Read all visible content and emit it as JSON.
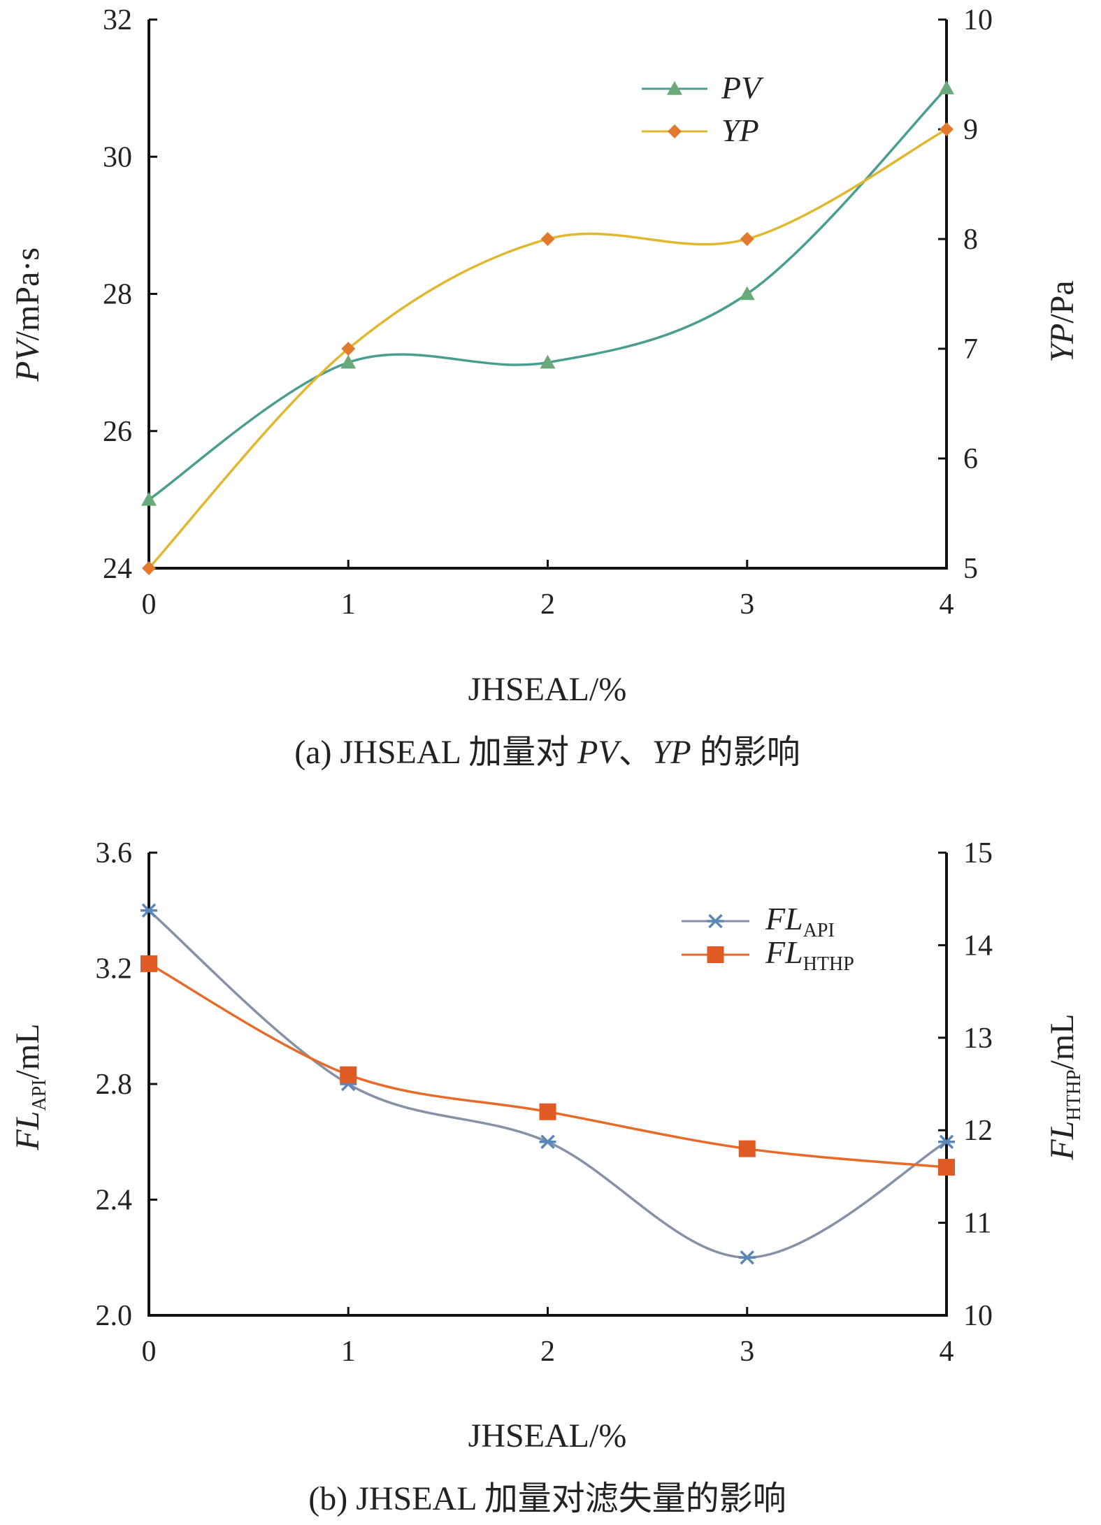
{
  "chart_data": [
    {
      "type": "line",
      "caption_prefix": "(a) JHSEAL 加量对 ",
      "caption_pv": "PV",
      "caption_sep": "、",
      "caption_yp": "YP",
      "caption_suffix": " 的影响",
      "xlabel": "JHSEAL/%",
      "x": [
        0,
        1,
        2,
        3,
        4
      ],
      "xlim": [
        0,
        4
      ],
      "x_ticks": [
        "0",
        "1",
        "2",
        "3",
        "4"
      ],
      "ylabel_left_main": "PV",
      "ylabel_left_unit": "/mPa·s",
      "ylim_left": [
        24,
        32
      ],
      "y_ticks_left": [
        "24",
        "26",
        "28",
        "30",
        "32"
      ],
      "ylabel_right_main": "YP",
      "ylabel_right_unit": "/Pa",
      "ylim_right": [
        5,
        10
      ],
      "y_ticks_right": [
        "5",
        "6",
        "7",
        "8",
        "9",
        "10"
      ],
      "legend_position": "top-right",
      "series": [
        {
          "name": "PV",
          "axis": "left",
          "marker": "triangle",
          "color": "#4a9e90",
          "marker_color": "#6aaa7a",
          "values": [
            25,
            27,
            27,
            28,
            31
          ]
        },
        {
          "name": "YP",
          "axis": "right",
          "marker": "diamond",
          "color": "#e0b830",
          "marker_color": "#e27a2e",
          "values": [
            5,
            7,
            8,
            8,
            9
          ]
        }
      ]
    },
    {
      "type": "line",
      "caption": "(b) JHSEAL 加量对滤失量的影响",
      "xlabel": "JHSEAL/%",
      "x": [
        0,
        1,
        2,
        3,
        4
      ],
      "xlim": [
        0,
        4
      ],
      "x_ticks": [
        "0",
        "1",
        "2",
        "3",
        "4"
      ],
      "ylabel_left_main": "FL",
      "ylabel_left_sub": "API",
      "ylabel_left_unit": "/mL",
      "ylim_left": [
        2.0,
        3.6
      ],
      "y_ticks_left": [
        "2.0",
        "2.4",
        "2.8",
        "3.2",
        "3.6"
      ],
      "ylabel_right_main": "FL",
      "ylabel_right_sub": "HTHP",
      "ylabel_right_unit": "/mL",
      "ylim_right": [
        10,
        15
      ],
      "y_ticks_right": [
        "10",
        "11",
        "12",
        "13",
        "14",
        "15"
      ],
      "legend_position": "top-right",
      "series": [
        {
          "name": "FL",
          "name_sub": "API",
          "axis": "left",
          "marker": "asterisk",
          "color": "#8591a4",
          "marker_color": "#5b86b8",
          "values": [
            3.4,
            2.8,
            2.6,
            2.2,
            2.6
          ]
        },
        {
          "name": "FL",
          "name_sub": "HTHP",
          "axis": "right",
          "marker": "square",
          "color": "#e86a28",
          "marker_color": "#e05a26",
          "values": [
            13.8,
            12.6,
            12.2,
            11.8,
            11.6
          ]
        }
      ]
    }
  ]
}
